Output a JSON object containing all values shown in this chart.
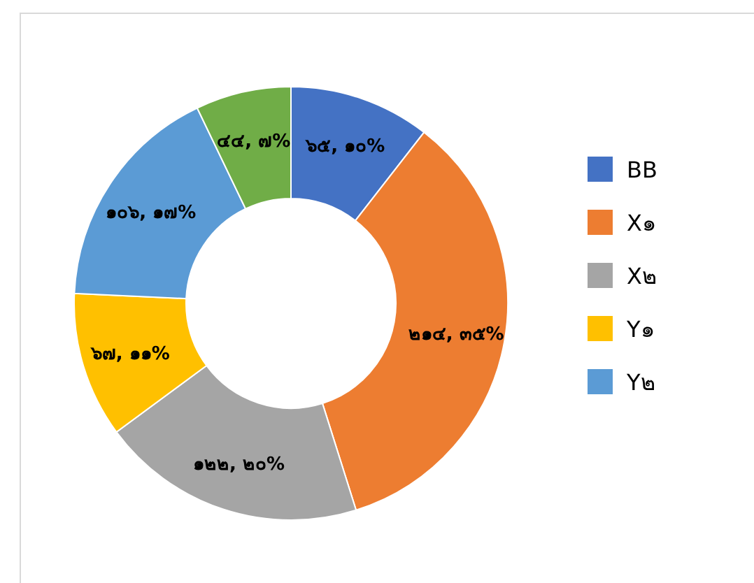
{
  "chart_data": {
    "type": "donut",
    "categories": [
      "BB",
      "X๑",
      "X๒",
      "Y๑",
      "Y๒",
      null
    ],
    "values": [
      65,
      214,
      122,
      67,
      106,
      44
    ],
    "colors": [
      "#4472c4",
      "#ed7d31",
      "#a5a5a5",
      "#ffc000",
      "#5b9bd5",
      "#70ad47"
    ],
    "value_labels": [
      "๖๕, ๑๐%",
      "๒๑๔, ๓๕%",
      "๑๒๒, ๒๐%",
      "๖๗, ๑๑%",
      "๑๐๖, ๑๗%",
      "๔๔, ๗%"
    ],
    "legend": "right"
  }
}
